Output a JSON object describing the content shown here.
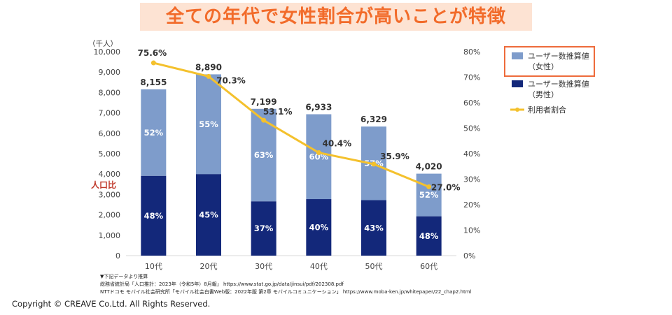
{
  "headline": "全ての年代で女性割合が高いことが特徴",
  "copyright": "Copyright © CREAVE Co.Ltd. All Rights Reserved.",
  "chart_data": {
    "type": "bar",
    "stacked": true,
    "categories": [
      "10代",
      "20代",
      "30代",
      "40代",
      "50代",
      "60代"
    ],
    "totals": [
      8155,
      8890,
      7199,
      6933,
      6329,
      4020
    ],
    "total_labels": [
      "8,155",
      "8,890",
      "7,199",
      "6,933",
      "6,329",
      "4,020"
    ],
    "series": [
      {
        "name": "ユーザー数推算値（男性）",
        "color": "#13287a",
        "percent_labels": [
          "48%",
          "45%",
          "37%",
          "40%",
          "43%",
          "48%"
        ],
        "values": [
          3914,
          4001,
          2664,
          2773,
          2721,
          1930
        ]
      },
      {
        "name": "ユーザー数推算値（女性）",
        "color": "#7e9ccb",
        "percent_labels": [
          "52%",
          "55%",
          "63%",
          "60%",
          "57%",
          "52%"
        ],
        "values": [
          4241,
          4889,
          4535,
          4160,
          3608,
          2090
        ]
      }
    ],
    "line": {
      "name": "利用者割合",
      "color": "#f4c12d",
      "values": [
        75.6,
        70.3,
        53.1,
        40.4,
        35.9,
        27.0
      ],
      "labels": [
        "75.6%",
        "70.3%",
        "53.1%",
        "40.4%",
        "35.9%",
        "27.0%"
      ]
    },
    "y_left": {
      "unit": "（千人）",
      "ylim": [
        0,
        10000
      ],
      "ticks": [
        "0",
        "1,000",
        "2,000",
        "3,000",
        "4,000",
        "5,000",
        "6,000",
        "7,000",
        "8,000",
        "9,000",
        "10,000"
      ]
    },
    "y_right": {
      "ylim": [
        0,
        80
      ],
      "ticks": [
        "0%",
        "10%",
        "20%",
        "30%",
        "40%",
        "50%",
        "60%",
        "70%",
        "80%"
      ]
    },
    "legend": {
      "position": "right",
      "items": [
        {
          "lines": [
            "ユーザー数推算値",
            "（女性）"
          ],
          "color": "#7e9ccb",
          "marker": "box",
          "highlight": true
        },
        {
          "lines": [
            "ユーザー数推算値",
            "（男性）"
          ],
          "color": "#13287a",
          "marker": "box",
          "highlight": false
        },
        {
          "lines": [
            "利用者割合"
          ],
          "color": "#f4c12d",
          "marker": "line",
          "highlight": false
        }
      ]
    },
    "highlight_color": "#ee6b3b",
    "annotation": "人口比",
    "sources": [
      "▼下記データより推算",
      "総務省統計局「人口推計：2023年（令和5年）8月報」 https://www.stat.go.jp/data/jinsui/pdf/202308.pdf",
      "NTTドコモ モバイル社会研究所「モバイル社会白書Web版：2022年版 第2章 モバイルコミュニケーション」 https://www.moba-ken.jp/whitepaper/22_chap2.html"
    ]
  }
}
